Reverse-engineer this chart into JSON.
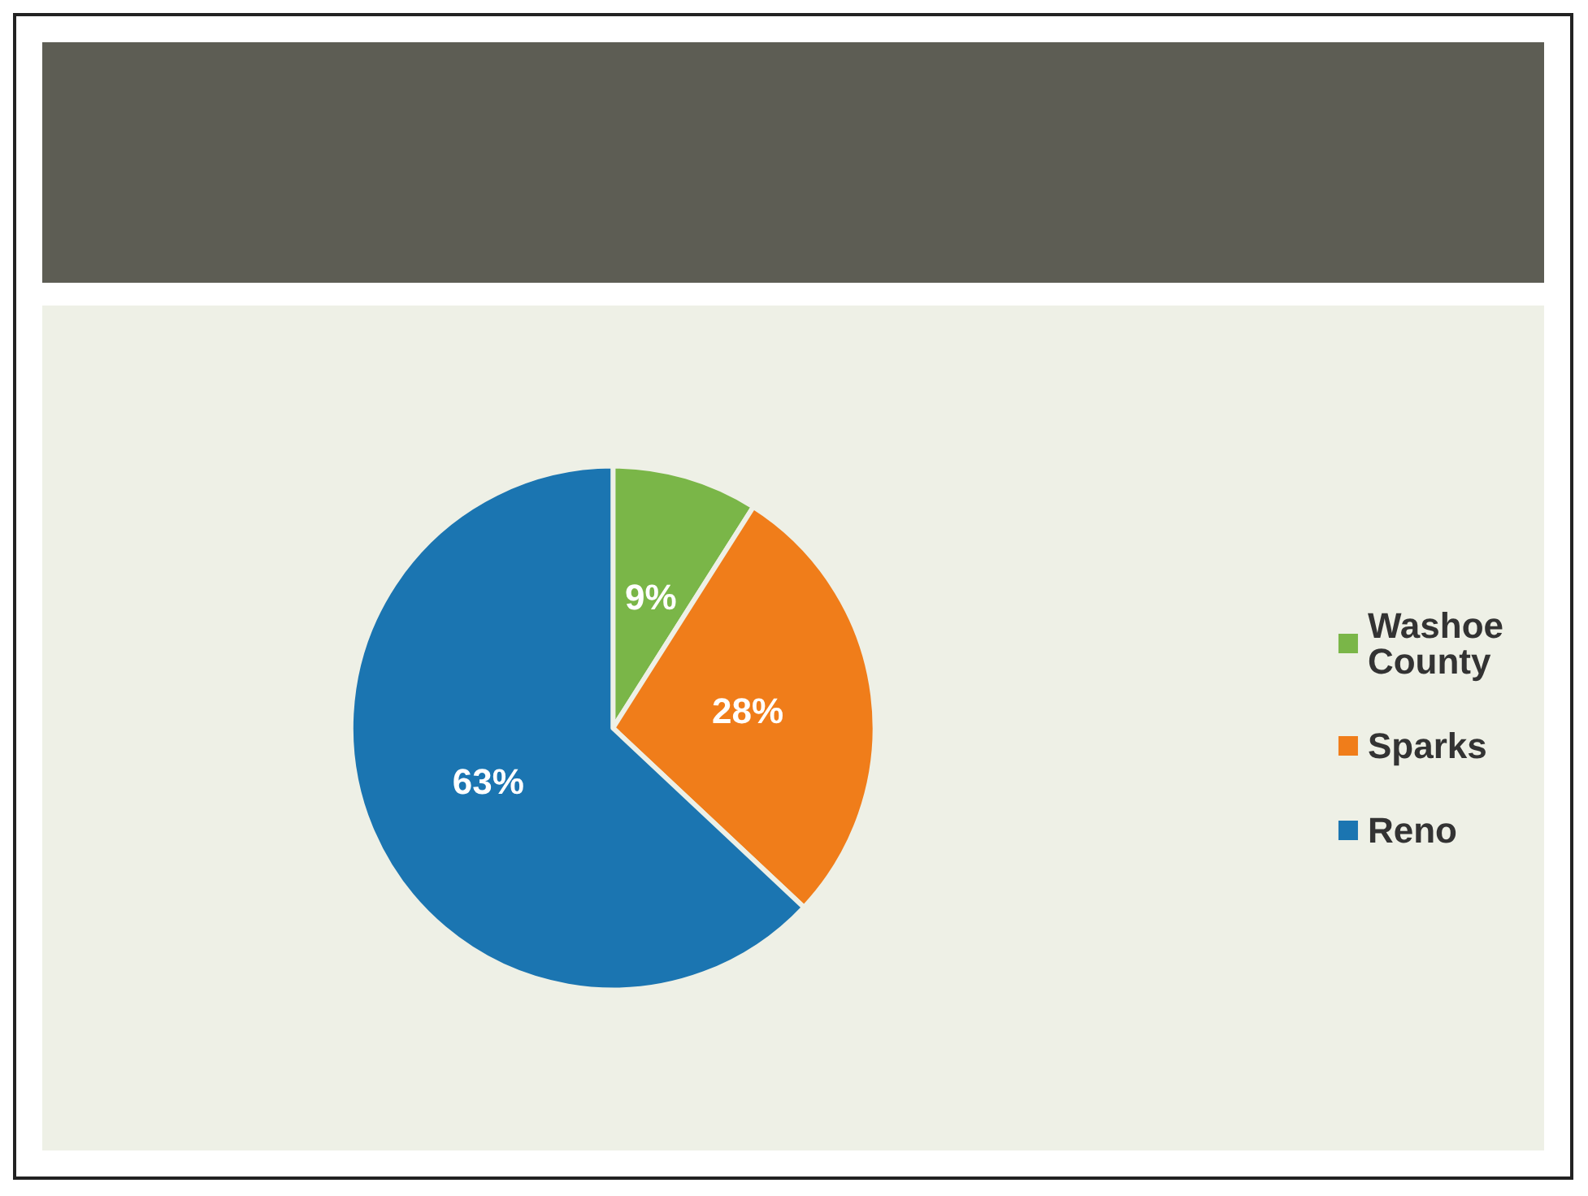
{
  "chart_data": {
    "type": "pie",
    "categories": [
      "Washoe County",
      "Sparks",
      "Reno"
    ],
    "values": [
      9,
      28,
      63
    ],
    "colors": [
      "#7ab648",
      "#f07d1a",
      "#1b75b1"
    ],
    "value_labels": [
      "9%",
      "28%",
      "63%"
    ],
    "legend": "right"
  }
}
